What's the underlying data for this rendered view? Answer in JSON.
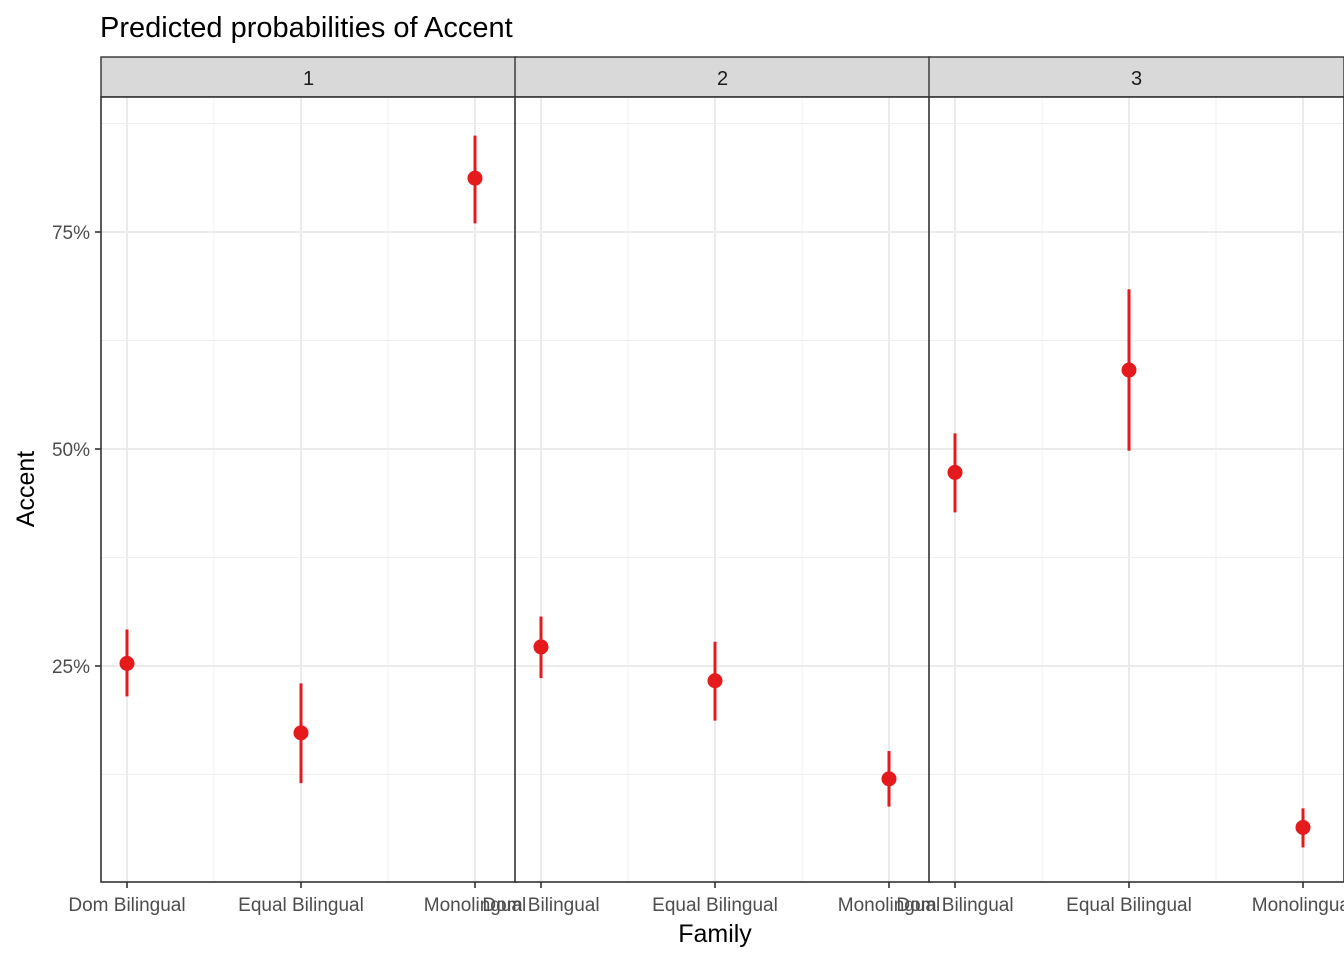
{
  "chart_data": {
    "type": "scatter",
    "title": "Predicted probabilities of Accent",
    "xlabel": "Family",
    "ylabel": "Accent",
    "categories": [
      "Dom Bilingual",
      "Equal Bilingual",
      "Monolingual"
    ],
    "y_ticks": [
      0.25,
      0.5,
      0.75
    ],
    "y_tick_labels": [
      "25%",
      "50%",
      "75%"
    ],
    "ylim": [
      0.0,
      0.9
    ],
    "grid": true,
    "facets": [
      {
        "label": "1",
        "points": [
          {
            "x": "Dom Bilingual",
            "y": 0.253,
            "lower": 0.215,
            "upper": 0.292
          },
          {
            "x": "Equal Bilingual",
            "y": 0.173,
            "lower": 0.115,
            "upper": 0.23
          },
          {
            "x": "Monolingual",
            "y": 0.812,
            "lower": 0.76,
            "upper": 0.861
          }
        ]
      },
      {
        "label": "2",
        "points": [
          {
            "x": "Dom Bilingual",
            "y": 0.272,
            "lower": 0.236,
            "upper": 0.307
          },
          {
            "x": "Equal Bilingual",
            "y": 0.233,
            "lower": 0.187,
            "upper": 0.278
          },
          {
            "x": "Monolingual",
            "y": 0.12,
            "lower": 0.088,
            "upper": 0.152
          }
        ]
      },
      {
        "label": "3",
        "points": [
          {
            "x": "Dom Bilingual",
            "y": 0.473,
            "lower": 0.427,
            "upper": 0.518
          },
          {
            "x": "Equal Bilingual",
            "y": 0.591,
            "lower": 0.498,
            "upper": 0.684
          },
          {
            "x": "Monolingual",
            "y": 0.064,
            "lower": 0.041,
            "upper": 0.086
          }
        ]
      }
    ],
    "point_color": "#e41a1c"
  }
}
